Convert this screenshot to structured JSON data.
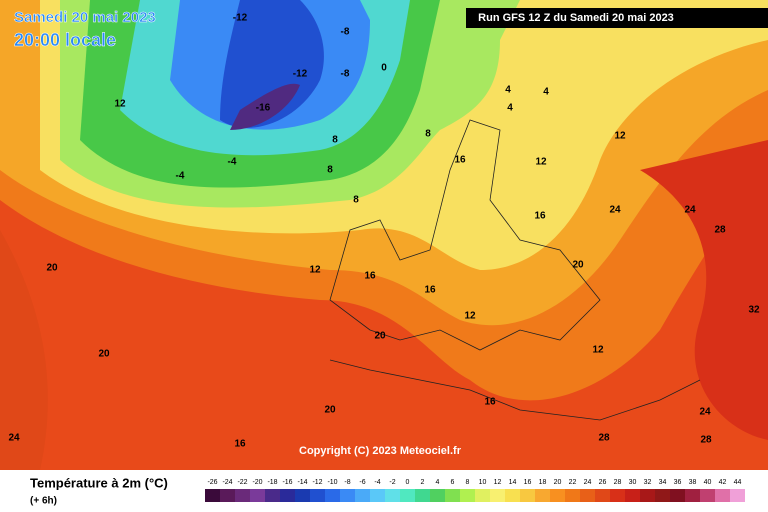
{
  "header": {
    "title": "Samedi 20 mai 2023",
    "subtitle": "20:00 locale",
    "run": "Run GFS 12 Z du Samedi 20 mai 2023"
  },
  "footer": {
    "title": "Température à 2m (°C)",
    "step": "(+ 6h)",
    "copyright": "Copyright (C) 2023 Meteociel.fr"
  },
  "legend": {
    "ticks": [
      -26,
      -24,
      -22,
      -20,
      -18,
      -16,
      -14,
      -12,
      -10,
      -8,
      -6,
      -4,
      -2,
      0,
      2,
      4,
      6,
      8,
      10,
      12,
      14,
      16,
      18,
      20,
      22,
      24,
      26,
      28,
      30,
      32,
      34,
      36,
      38,
      40,
      42,
      44
    ],
    "colors": [
      "#3a0a3a",
      "#5a1a5a",
      "#6a2a7a",
      "#7a3a9a",
      "#4a2a8a",
      "#2a2a9a",
      "#1a3ab0",
      "#2050d0",
      "#2a6ae8",
      "#3a8af5",
      "#4aaaf8",
      "#5ac8f8",
      "#60e0e8",
      "#50e8c0",
      "#40d890",
      "#50d060",
      "#80e050",
      "#b0f050",
      "#e0f060",
      "#f8f070",
      "#f8e050",
      "#f8c840",
      "#f8a830",
      "#f89020",
      "#f07818",
      "#e86018",
      "#e04818",
      "#d83018",
      "#c82018",
      "#a81818",
      "#901818",
      "#801020",
      "#a02040",
      "#c04070",
      "#e070a8",
      "#f0a0d8"
    ]
  },
  "isotherm_labels": [
    -16,
    -12,
    -8,
    -8,
    -4,
    -4,
    0,
    4,
    4,
    8,
    8,
    8,
    12,
    12,
    12,
    12,
    16,
    16,
    16,
    16,
    20,
    20,
    20,
    20,
    24,
    24,
    24,
    28,
    28,
    32,
    12,
    16,
    8,
    4,
    -12,
    20,
    16,
    24,
    28,
    12
  ]
}
